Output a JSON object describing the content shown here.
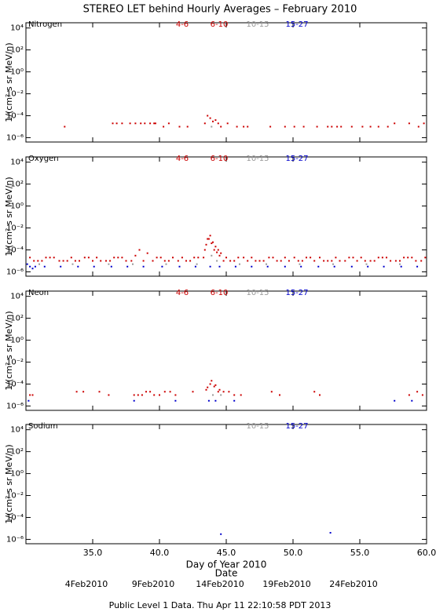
{
  "title": "STEREO LET behind Hourly Averages – February 2010",
  "footer": "Public Level 1 Data. Thu Apr 11 22:10:58 PDT 2013",
  "chart_data": [
    {
      "type": "scatter",
      "panel_label": "Nitrogen",
      "ylabel": "1/(cm² s sr MeV/n)",
      "log_y": true,
      "xlim": [
        30,
        60
      ],
      "ylim": [
        4e-07,
        30000
      ],
      "yticks": [
        {
          "value": 1e-06,
          "label": "10⁻⁶"
        },
        {
          "value": 0.0001,
          "label": "10⁻⁴"
        },
        {
          "value": 0.01,
          "label": "10⁻²"
        },
        {
          "value": 1,
          "label": "10⁰"
        },
        {
          "value": 100,
          "label": "10²"
        },
        {
          "value": 10000,
          "label": "10⁴"
        }
      ],
      "xticks": [
        35,
        40,
        45,
        50,
        55,
        60
      ],
      "series": [
        {
          "name": "4-6",
          "color": "#cc0000",
          "x": [
            32.9,
            37.2,
            38.6,
            39.6,
            42.1,
            45.8,
            53.3,
            57.1
          ],
          "values": [
            1e-05,
            2e-05,
            2e-05,
            2e-05,
            1e-05,
            1e-05,
            1e-05,
            1e-05
          ]
        },
        {
          "name": "6-10",
          "color": "#cc0000",
          "x": [
            36.5,
            36.8,
            37.8,
            38.2,
            38.9,
            39.3,
            39.7,
            40.3,
            40.7,
            41.5,
            43.4,
            43.6,
            43.8,
            44.0,
            44.2,
            44.4,
            44.6,
            45.1,
            46.3,
            46.6,
            48.3,
            49.4,
            50.1,
            50.8,
            51.8,
            52.6,
            52.9,
            53.6,
            54.4,
            55.2,
            55.8,
            56.4,
            57.6,
            58.7,
            59.4,
            59.8
          ],
          "values": [
            2e-05,
            2e-05,
            2e-05,
            2e-05,
            2e-05,
            2e-05,
            2e-05,
            1e-05,
            2e-05,
            1e-05,
            2e-05,
            0.0001,
            6e-05,
            3e-05,
            4e-05,
            2e-05,
            1e-05,
            2e-05,
            1e-05,
            1e-05,
            1e-05,
            1e-05,
            1e-05,
            1e-05,
            1e-05,
            1e-05,
            1e-05,
            1e-05,
            1e-05,
            1e-05,
            1e-05,
            1e-05,
            2e-05,
            2e-05,
            1e-05,
            2e-05
          ]
        },
        {
          "name": "10-15",
          "color": "#999999",
          "x": [
            43.9
          ],
          "values": [
            1e-05
          ]
        },
        {
          "name": "15-27",
          "color": "#0000cc",
          "x": [],
          "values": []
        }
      ]
    },
    {
      "type": "scatter",
      "panel_label": "Oxygen",
      "ylabel": "1/(cm² s sr MeV/n)",
      "log_y": true,
      "xlim": [
        30,
        60
      ],
      "ylim": [
        4e-07,
        30000
      ],
      "yticks": [
        {
          "value": 1e-06,
          "label": "10⁻⁶"
        },
        {
          "value": 0.0001,
          "label": "10⁻⁴"
        },
        {
          "value": 0.01,
          "label": "10⁻²"
        },
        {
          "value": 1,
          "label": "10⁰"
        },
        {
          "value": 100,
          "label": "10²"
        },
        {
          "value": 10000,
          "label": "10⁴"
        }
      ],
      "xticks": [
        35,
        40,
        45,
        50,
        55,
        60
      ],
      "series": [
        {
          "name": "4-6",
          "color": "#cc0000",
          "x": [
            30.3,
            30.9,
            31.5,
            32.1,
            32.8,
            33.4,
            34.0,
            34.7,
            35.3,
            36.0,
            36.6,
            37.2,
            37.9,
            38.5,
            39.1,
            39.8,
            40.4,
            41.0,
            41.7,
            42.3,
            42.9,
            43.4,
            43.6,
            43.8,
            44.0,
            44.2,
            44.4,
            44.6,
            45.0,
            45.6,
            46.3,
            46.9,
            47.5,
            48.2,
            48.8,
            49.4,
            50.1,
            50.7,
            51.3,
            52.0,
            52.6,
            53.2,
            53.9,
            54.5,
            55.1,
            55.8,
            56.4,
            57.0,
            57.7,
            58.3,
            58.9,
            59.6
          ],
          "values": [
            2e-05,
            1e-05,
            2e-05,
            2e-05,
            1e-05,
            2e-05,
            1e-05,
            2e-05,
            2e-05,
            1e-05,
            2e-05,
            2e-05,
            1e-05,
            0.0001,
            5e-05,
            2e-05,
            1e-05,
            2e-05,
            2e-05,
            1e-05,
            2e-05,
            0.0001,
            0.001,
            0.002,
            0.0005,
            0.0002,
            0.0001,
            5e-05,
            2e-05,
            1e-05,
            2e-05,
            2e-05,
            1e-05,
            2e-05,
            1e-05,
            2e-05,
            2e-05,
            1e-05,
            2e-05,
            2e-05,
            1e-05,
            2e-05,
            1e-05,
            2e-05,
            2e-05,
            1e-05,
            2e-05,
            2e-05,
            1e-05,
            2e-05,
            2e-05,
            1e-05
          ]
        },
        {
          "name": "6-10",
          "color": "#cc0000",
          "x": [
            30.6,
            31.2,
            31.8,
            32.5,
            33.1,
            33.7,
            34.4,
            35.0,
            35.6,
            36.3,
            36.9,
            37.5,
            38.2,
            38.8,
            39.5,
            40.1,
            40.7,
            41.4,
            42.0,
            42.6,
            43.3,
            43.5,
            43.7,
            43.9,
            44.1,
            44.3,
            44.5,
            44.8,
            45.3,
            45.9,
            46.6,
            47.2,
            47.8,
            48.5,
            49.1,
            49.7,
            50.4,
            51.0,
            51.6,
            52.3,
            52.9,
            53.5,
            54.2,
            54.8,
            55.4,
            56.1,
            56.7,
            57.3,
            58.0,
            58.6,
            59.2,
            59.9
          ],
          "values": [
            1e-05,
            1e-05,
            2e-05,
            1e-05,
            1e-05,
            1e-05,
            2e-05,
            1e-05,
            1e-05,
            1e-05,
            2e-05,
            1e-05,
            3e-05,
            1e-05,
            1e-05,
            2e-05,
            1e-05,
            1e-05,
            1e-05,
            2e-05,
            2e-05,
            0.0003,
            0.001,
            0.0004,
            0.0001,
            6e-05,
            3e-05,
            1e-05,
            1e-05,
            2e-05,
            1e-05,
            1e-05,
            1e-05,
            2e-05,
            1e-05,
            1e-05,
            1e-05,
            2e-05,
            1e-05,
            1e-05,
            1e-05,
            1e-05,
            2e-05,
            1e-05,
            1e-05,
            1e-05,
            2e-05,
            1e-05,
            1e-05,
            2e-05,
            1e-05,
            2e-05
          ]
        },
        {
          "name": "10-15",
          "color": "#999999",
          "x": [
            31.0,
            33.5,
            36.2,
            38.0,
            40.5,
            42.8,
            43.9,
            44.3,
            46.0,
            48.0,
            50.5,
            53.0,
            55.5,
            58.0
          ],
          "values": [
            5e-06,
            5e-06,
            5e-06,
            5e-06,
            5e-06,
            5e-06,
            3e-05,
            1e-05,
            5e-06,
            5e-06,
            5e-06,
            5e-06,
            5e-06,
            5e-06
          ]
        },
        {
          "name": "15-27",
          "color": "#0000cc",
          "x": [
            30.1,
            30.3,
            30.5,
            30.7,
            31.4,
            32.6,
            33.9,
            35.1,
            36.4,
            37.6,
            38.8,
            40.2,
            41.5,
            42.7,
            43.8,
            44.5,
            45.7,
            46.9,
            48.1,
            49.4,
            50.6,
            51.9,
            53.1,
            54.4,
            55.6,
            56.8,
            58.1,
            59.3
          ],
          "values": [
            5e-06,
            3e-06,
            2e-06,
            3e-06,
            3e-06,
            3e-06,
            3e-06,
            3e-06,
            3e-06,
            3e-06,
            3e-06,
            3e-06,
            3e-06,
            3e-06,
            3e-06,
            3e-06,
            3e-06,
            3e-06,
            3e-06,
            3e-06,
            3e-06,
            3e-06,
            3e-06,
            3e-06,
            3e-06,
            3e-06,
            3e-06,
            3e-06
          ]
        }
      ]
    },
    {
      "type": "scatter",
      "panel_label": "Neon",
      "ylabel": "1/(cm² s sr MeV/n)",
      "log_y": true,
      "xlim": [
        30,
        60
      ],
      "ylim": [
        4e-07,
        30000
      ],
      "yticks": [
        {
          "value": 1e-06,
          "label": "10⁻⁶"
        },
        {
          "value": 0.0001,
          "label": "10⁻⁴"
        },
        {
          "value": 0.01,
          "label": "10⁻²"
        },
        {
          "value": 1,
          "label": "10⁰"
        },
        {
          "value": 100,
          "label": "10²"
        },
        {
          "value": 10000,
          "label": "10⁴"
        }
      ],
      "xticks": [
        35,
        40,
        45,
        50,
        55,
        60
      ],
      "series": [
        {
          "name": "4-6",
          "color": "#cc0000",
          "x": [
            30.3,
            33.8,
            35.5,
            38.1,
            38.7,
            39.3,
            40.0,
            40.8,
            43.5,
            43.8,
            44.1,
            44.4,
            45.6,
            48.4,
            51.6,
            58.7
          ],
          "values": [
            1e-05,
            2e-05,
            2e-05,
            1e-05,
            1e-05,
            2e-05,
            1e-05,
            2e-05,
            3e-05,
            0.0001,
            6e-05,
            2e-05,
            1e-05,
            2e-05,
            2e-05,
            1e-05
          ]
        },
        {
          "name": "6-10",
          "color": "#cc0000",
          "x": [
            30.5,
            34.3,
            36.2,
            38.4,
            39.0,
            39.6,
            40.4,
            41.2,
            42.5,
            43.6,
            43.9,
            44.2,
            44.5,
            44.8,
            45.2,
            46.1,
            49.0,
            52.0,
            59.3,
            59.7
          ],
          "values": [
            1e-05,
            2e-05,
            1e-05,
            1e-05,
            2e-05,
            1e-05,
            2e-05,
            1e-05,
            2e-05,
            5e-05,
            0.0002,
            8e-05,
            3e-05,
            2e-05,
            2e-05,
            1e-05,
            1e-05,
            1e-05,
            2e-05,
            1e-05
          ]
        },
        {
          "name": "10-15",
          "color": "#999999",
          "x": [
            44.0,
            44.6
          ],
          "values": [
            1e-05,
            1e-05
          ]
        },
        {
          "name": "15-27",
          "color": "#0000cc",
          "x": [
            30.2,
            38.1,
            41.2,
            43.7,
            44.2,
            45.6,
            57.6,
            58.9
          ],
          "values": [
            3e-06,
            3e-06,
            3e-06,
            3e-06,
            3e-06,
            3e-06,
            3e-06,
            3e-06
          ]
        }
      ]
    },
    {
      "type": "scatter",
      "panel_label": "Sodium",
      "ylabel": "1/(cm² s sr MeV/n)",
      "log_y": true,
      "xlim": [
        30,
        60
      ],
      "ylim": [
        4e-07,
        30000
      ],
      "yticks": [
        {
          "value": 1e-06,
          "label": "10⁻⁶"
        },
        {
          "value": 0.0001,
          "label": "10⁻⁴"
        },
        {
          "value": 0.01,
          "label": "10⁻²"
        },
        {
          "value": 1,
          "label": "10⁰"
        },
        {
          "value": 100,
          "label": "10²"
        },
        {
          "value": 10000,
          "label": "10⁴"
        }
      ],
      "xticks": [
        {
          "value": 35,
          "label": "35.0"
        },
        {
          "value": 40,
          "label": "40.0"
        },
        {
          "value": 45,
          "label": "45.0"
        },
        {
          "value": 50,
          "label": "50.0"
        },
        {
          "value": 55,
          "label": "55.0"
        },
        {
          "value": 60,
          "label": "60.0"
        }
      ],
      "xlabel": "Day of Year 2010",
      "x2ticks": [
        {
          "value": 35,
          "label": "4Feb2010"
        },
        {
          "value": 40,
          "label": "9Feb2010"
        },
        {
          "value": 45,
          "label": "14Feb2010"
        },
        {
          "value": 50,
          "label": "19Feb2010"
        },
        {
          "value": 55,
          "label": "24Feb2010"
        }
      ],
      "x2label": "Date",
      "series": [
        {
          "name": "10-15",
          "color": "#999999",
          "x": [],
          "values": []
        },
        {
          "name": "15-27",
          "color": "#0000cc",
          "x": [
            44.6,
            52.8
          ],
          "values": [
            3e-06,
            4e-06
          ]
        }
      ]
    }
  ]
}
